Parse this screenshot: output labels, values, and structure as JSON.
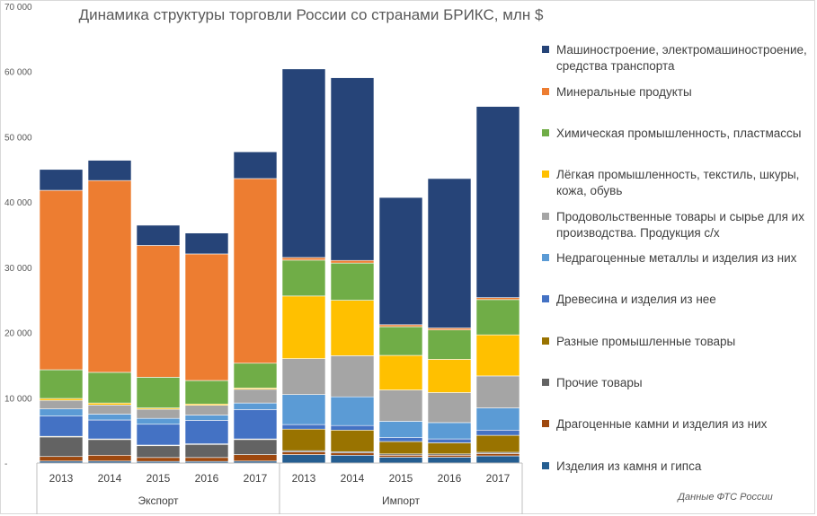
{
  "chart_data": {
    "type": "stacked-bar",
    "title": "Динамика структуры торговли России со странами БРИКС, млн  $",
    "source_note": "Данные ФТС России",
    "ylim": [
      0,
      70000
    ],
    "ytick_values": [
      0,
      10000,
      20000,
      30000,
      40000,
      50000,
      60000,
      70000
    ],
    "ytick_labels": [
      "-",
      "10 000",
      "20 000",
      "30 000",
      "40 000",
      "50 000",
      "60 000",
      "70 000"
    ],
    "groups": [
      "Экспорт",
      "Импорт"
    ],
    "categories": [
      "2013",
      "2014",
      "2015",
      "2016",
      "2017",
      "2013",
      "2014",
      "2015",
      "2016",
      "2017"
    ],
    "series": [
      {
        "key": "stone",
        "name": "Изделия из камня и гипса",
        "color": "#255E91",
        "values": [
          300,
          300,
          250,
          250,
          300,
          1300,
          1200,
          900,
          900,
          1100
        ]
      },
      {
        "key": "precious",
        "name": "Драгоценные камни и изделия из них",
        "color": "#9E480E",
        "values": [
          700,
          900,
          600,
          600,
          1000,
          400,
          350,
          300,
          300,
          350
        ]
      },
      {
        "key": "other",
        "name": "Прочие товары",
        "color": "#636363",
        "values": [
          3000,
          2400,
          1800,
          2000,
          2300,
          200,
          200,
          200,
          200,
          200
        ]
      },
      {
        "key": "misc_ind",
        "name": "Разные промышленные товары",
        "color": "#997300",
        "values": [
          100,
          100,
          100,
          100,
          100,
          3300,
          3300,
          1900,
          1700,
          2600
        ]
      },
      {
        "key": "wood",
        "name": "Древесина и изделия из нее",
        "color": "#4472C4",
        "values": [
          3100,
          2900,
          3200,
          3600,
          4500,
          700,
          700,
          600,
          600,
          800
        ]
      },
      {
        "key": "metals",
        "name": "Недрагоценные металлы и изделия из них",
        "color": "#5B9BD5",
        "values": [
          1100,
          900,
          900,
          800,
          1000,
          4600,
          4400,
          2500,
          2500,
          3400
        ]
      },
      {
        "key": "food",
        "name": "Продовольственные товары и сырье для их производства. Продукция с/х",
        "color": "#A5A5A5",
        "values": [
          1300,
          1400,
          1400,
          1500,
          2100,
          5500,
          6300,
          4800,
          4600,
          4900
        ]
      },
      {
        "key": "light",
        "name": "Лёгкая промышленность, текстиль, шкуры, кожа, обувь",
        "color": "#FFC000",
        "values": [
          300,
          300,
          200,
          200,
          200,
          9600,
          8500,
          5300,
          5100,
          6300
        ]
      },
      {
        "key": "chem",
        "name": "Химическая промышленность, пластмассы",
        "color": "#70AD47",
        "values": [
          4400,
          4700,
          4700,
          3600,
          3800,
          5500,
          5700,
          4400,
          4500,
          5400
        ]
      },
      {
        "key": "mineral",
        "name": "Минеральные продукты",
        "color": "#ED7D31",
        "values": [
          27500,
          29400,
          20200,
          19400,
          28300,
          400,
          400,
          300,
          300,
          300
        ]
      },
      {
        "key": "machinery",
        "name": "Машиностроение, электромашиностроение, средства транспорта",
        "color": "#264478",
        "values": [
          3200,
          3100,
          3100,
          3200,
          4100,
          28900,
          28000,
          19500,
          22900,
          29300
        ]
      }
    ],
    "legend_order": [
      "machinery",
      "mineral",
      "chem",
      "light",
      "food",
      "metals",
      "wood",
      "misc_ind",
      "other",
      "precious",
      "stone"
    ],
    "legend_labels": {
      "machinery": [
        "Машиностроение, электромашиностроение,",
        "средства транспорта"
      ],
      "mineral": [
        "Минеральные продукты"
      ],
      "chem": [
        "Химическая промышленность, пластмассы"
      ],
      "light": [
        "Лёгкая промышленность, текстиль, шкуры,",
        "кожа, обувь"
      ],
      "food": [
        "Продовольственные товары и сырье для их",
        "производства. Продукция с/х"
      ],
      "metals": [
        "Недрагоценные металлы и изделия из них"
      ],
      "wood": [
        "Древесина и изделия из нее"
      ],
      "misc_ind": [
        "Разные промышленные товары"
      ],
      "other": [
        "Прочие товары"
      ],
      "precious": [
        "Драгоценные камни и изделия из них"
      ],
      "stone": [
        "Изделия из камня и гипса"
      ]
    }
  }
}
